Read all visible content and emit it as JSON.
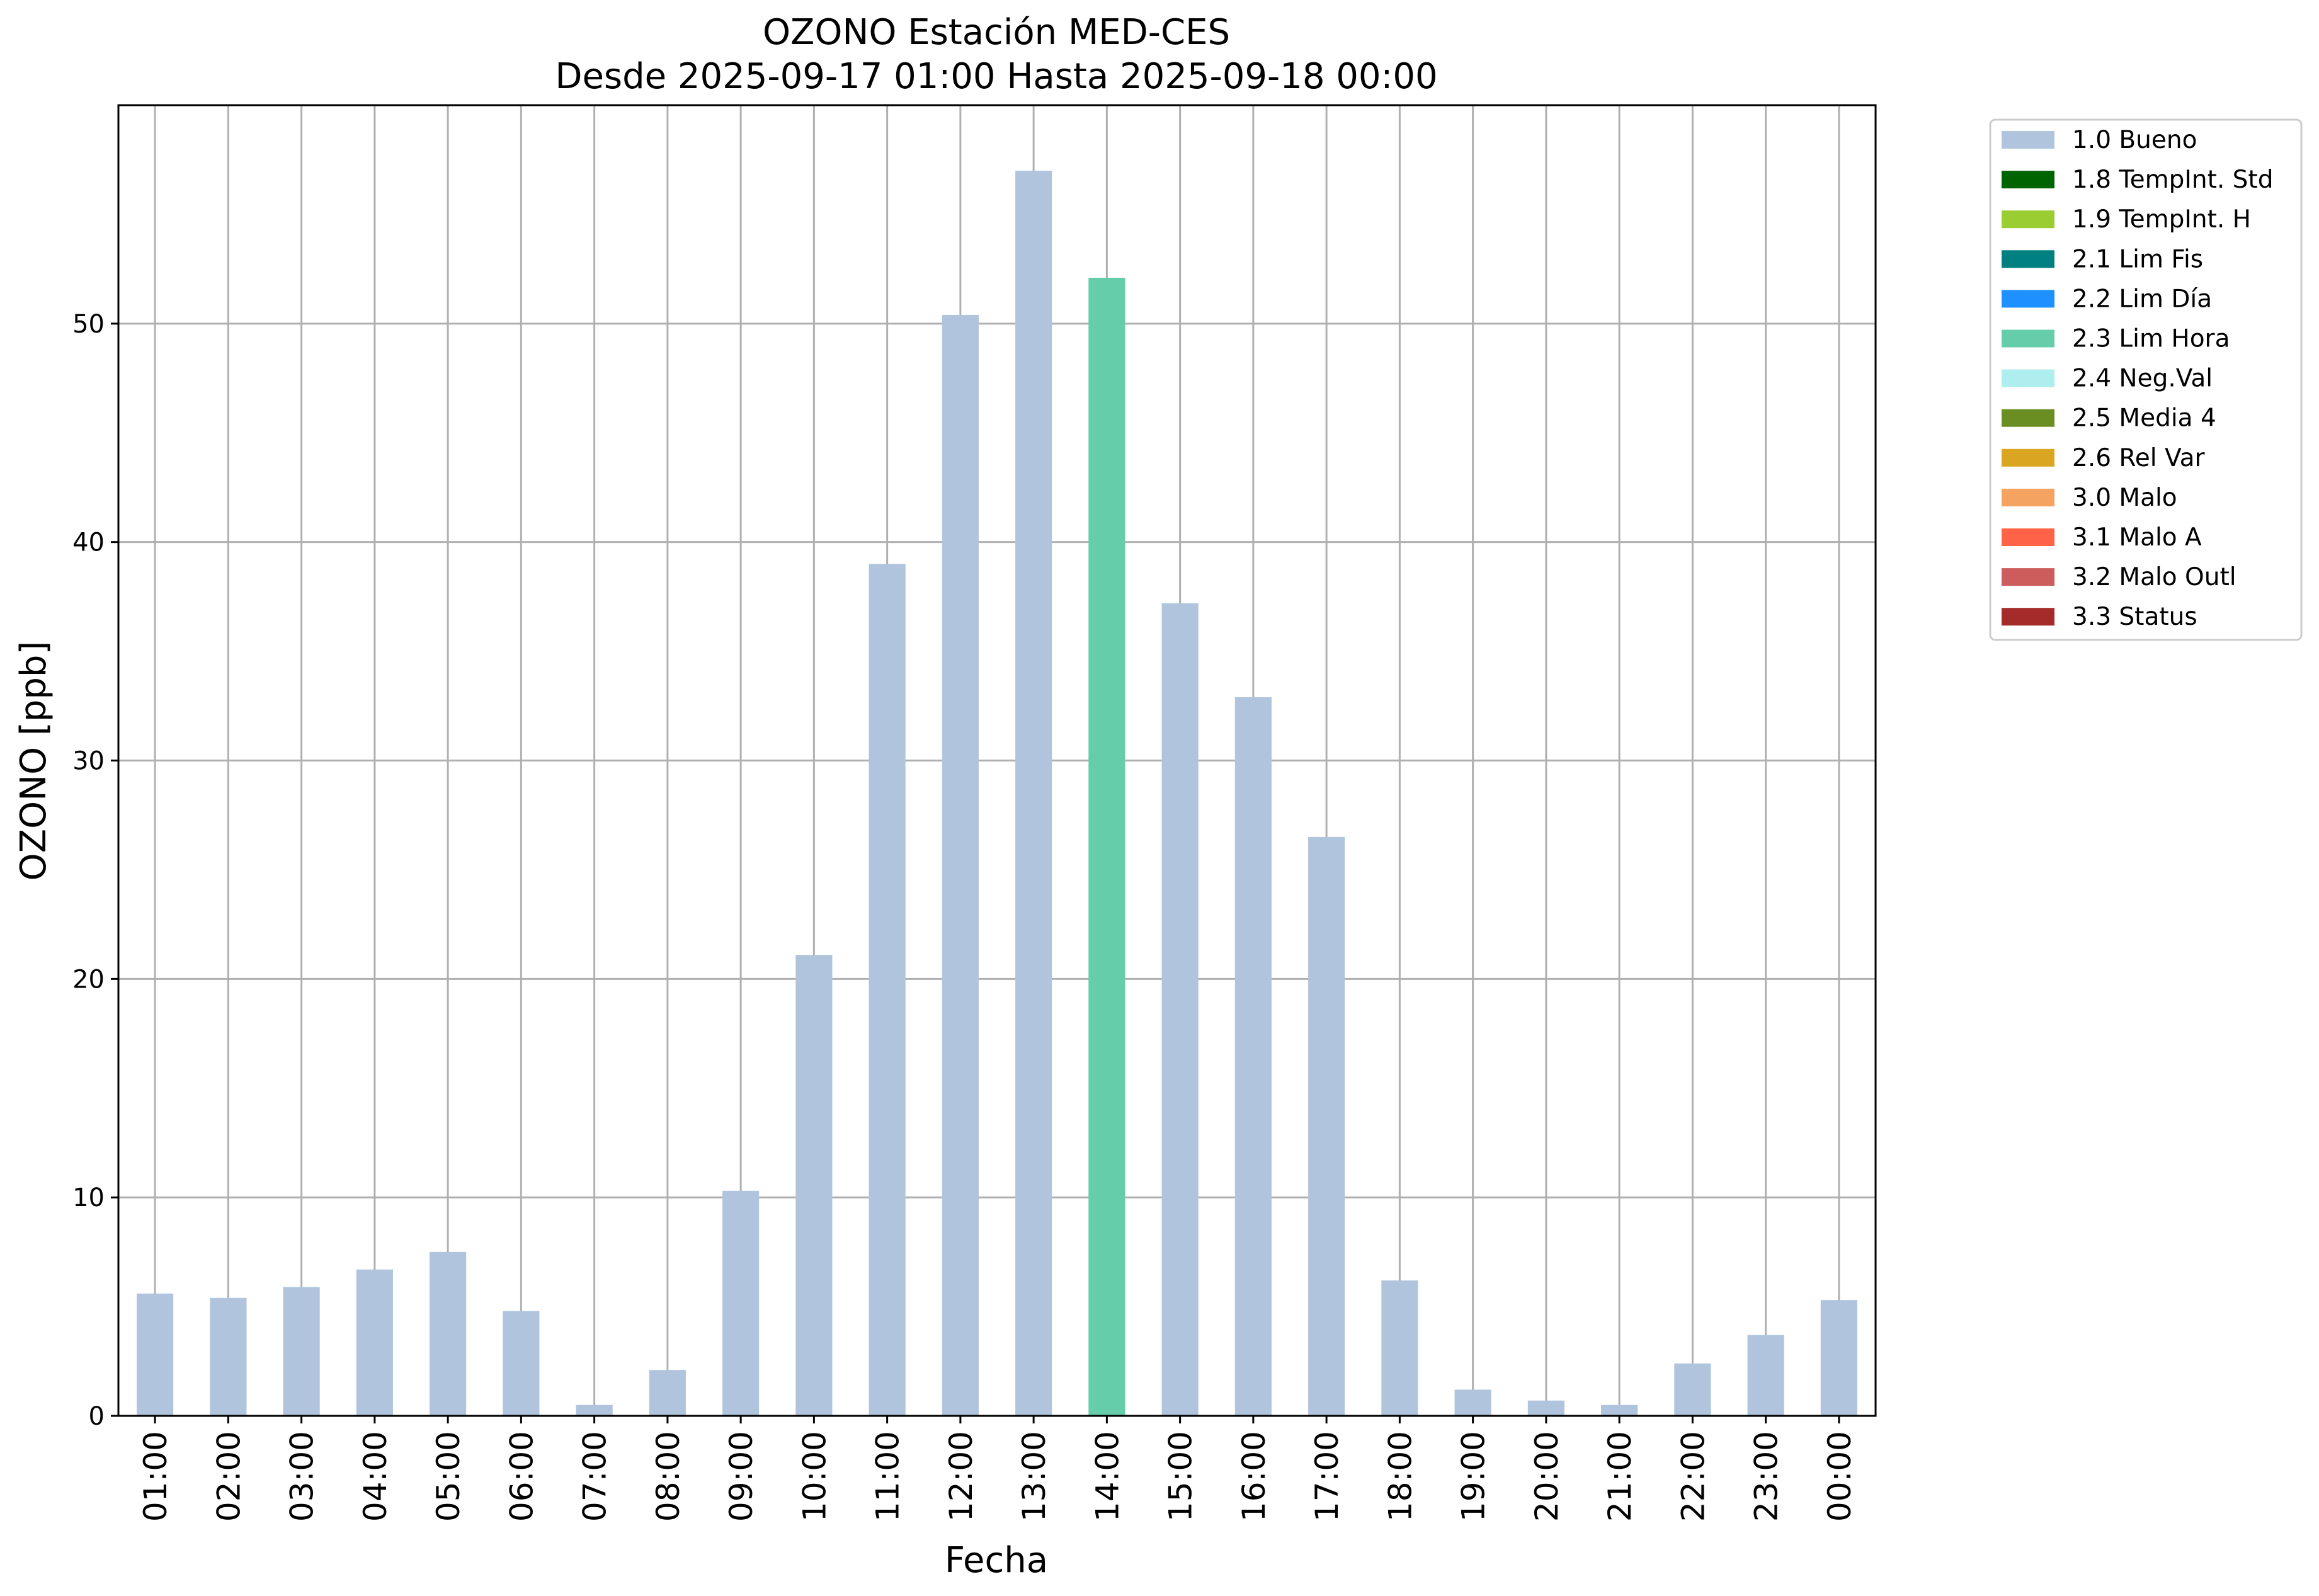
{
  "chart_data": {
    "type": "bar",
    "title": "OZONO Estación MED-CES",
    "subtitle": "Desde 2025-09-17 01:00 Hasta 2025-09-18 00:00",
    "xlabel": "Fecha",
    "ylabel": "OZONO [ppb]",
    "ylim": [
      0,
      60
    ],
    "yticks": [
      "0",
      "10",
      "20",
      "30",
      "40",
      "50"
    ],
    "grid": true,
    "legend_position": "outside-top-right",
    "categories": [
      "01:00",
      "02:00",
      "03:00",
      "04:00",
      "05:00",
      "06:00",
      "07:00",
      "08:00",
      "09:00",
      "10:00",
      "11:00",
      "12:00",
      "13:00",
      "14:00",
      "15:00",
      "16:00",
      "17:00",
      "18:00",
      "19:00",
      "20:00",
      "21:00",
      "22:00",
      "23:00",
      "00:00"
    ],
    "values": [
      5.6,
      5.4,
      5.9,
      6.7,
      7.5,
      4.8,
      0.5,
      2.1,
      10.3,
      21.1,
      39.0,
      50.4,
      57.0,
      52.1,
      37.2,
      32.9,
      26.5,
      6.2,
      1.2,
      0.7,
      0.5,
      2.4,
      3.7,
      5.3
    ],
    "bar_flags": [
      "1.0 Bueno",
      "1.0 Bueno",
      "1.0 Bueno",
      "1.0 Bueno",
      "1.0 Bueno",
      "1.0 Bueno",
      "1.0 Bueno",
      "1.0 Bueno",
      "1.0 Bueno",
      "1.0 Bueno",
      "1.0 Bueno",
      "1.0 Bueno",
      "1.0 Bueno",
      "2.3 Lim Hora",
      "1.0 Bueno",
      "1.0 Bueno",
      "1.0 Bueno",
      "1.0 Bueno",
      "1.0 Bueno",
      "1.0 Bueno",
      "1.0 Bueno",
      "1.0 Bueno",
      "1.0 Bueno",
      "1.0 Bueno"
    ],
    "legend": [
      {
        "label": "1.0 Bueno",
        "color": "#b0c4de"
      },
      {
        "label": "1.8 TempInt. Std",
        "color": "#006400"
      },
      {
        "label": "1.9 TempInt. H",
        "color": "#9acd32"
      },
      {
        "label": "2.1 Lim Fis",
        "color": "#008080"
      },
      {
        "label": "2.2 Lim Día",
        "color": "#1e90ff"
      },
      {
        "label": "2.3 Lim Hora",
        "color": "#66cdaa"
      },
      {
        "label": "2.4 Neg.Val",
        "color": "#afeeee"
      },
      {
        "label": "2.5 Media 4",
        "color": "#6b8e23"
      },
      {
        "label": "2.6 Rel Var",
        "color": "#daa520"
      },
      {
        "label": "3.0 Malo",
        "color": "#f4a460"
      },
      {
        "label": "3.1 Malo A",
        "color": "#ff6347"
      },
      {
        "label": "3.2 Malo Outl",
        "color": "#cd5c5c"
      },
      {
        "label": "3.3 Status",
        "color": "#a52a2a"
      }
    ]
  }
}
